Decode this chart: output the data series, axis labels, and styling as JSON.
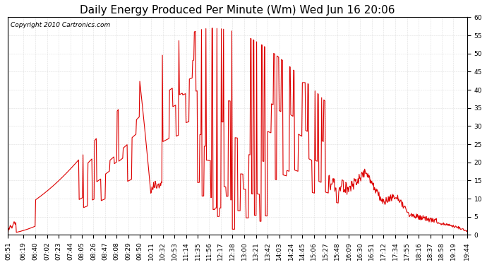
{
  "title": "Daily Energy Produced Per Minute (Wm) Wed Jun 16 20:06",
  "copyright": "Copyright 2010 Cartronics.com",
  "x_labels": [
    "05:51",
    "06:19",
    "06:40",
    "07:02",
    "07:23",
    "07:44",
    "08:05",
    "08:26",
    "08:47",
    "09:08",
    "09:29",
    "09:50",
    "10:11",
    "10:32",
    "10:53",
    "11:14",
    "11:35",
    "11:56",
    "12:17",
    "12:38",
    "13:00",
    "13:21",
    "13:42",
    "14:03",
    "14:24",
    "14:45",
    "15:06",
    "15:27",
    "15:48",
    "16:09",
    "16:30",
    "16:51",
    "17:12",
    "17:34",
    "17:55",
    "18:16",
    "18:37",
    "18:58",
    "19:19",
    "19:44"
  ],
  "y_min": 0.0,
  "y_max": 60.0,
  "y_ticks": [
    0.0,
    5.0,
    10.0,
    15.0,
    20.0,
    25.0,
    30.0,
    35.0,
    40.0,
    45.0,
    50.0,
    55.0,
    60.0
  ],
  "line_color": "#dd0000",
  "bg_color": "#ffffff",
  "grid_color": "#bbbbbb",
  "title_fontsize": 11,
  "copyright_fontsize": 6.5,
  "tick_fontsize": 6.5
}
